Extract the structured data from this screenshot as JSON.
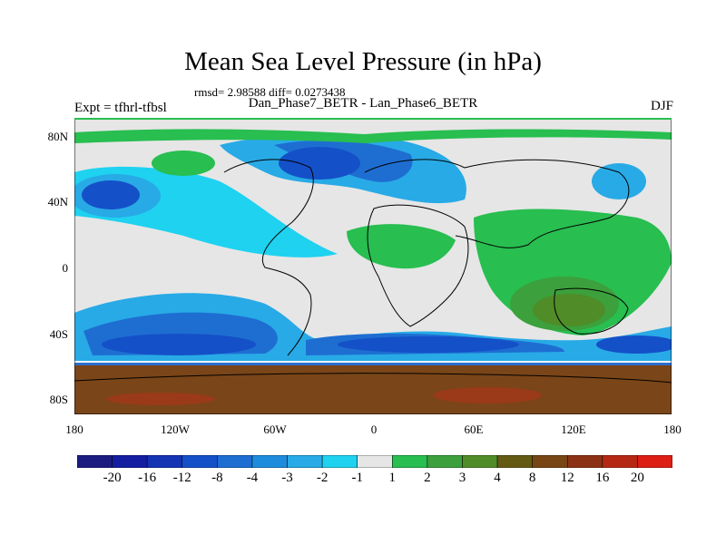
{
  "title": "Mean Sea Level Pressure (in hPa)",
  "stats_line": "rmsd= 2.98588 diff= 0.0273438",
  "experiment_label": "Expt = tfhrl-tfbsl",
  "subtitle": "Dan_Phase7_BETR - Lan_Phase6_BETR",
  "season": "DJF",
  "latitude_ticks": [
    "80N",
    "40N",
    "0",
    "40S",
    "80S"
  ],
  "longitude_ticks": [
    "180",
    "120W",
    "60W",
    "0",
    "60E",
    "120E",
    "180"
  ],
  "colorbar": {
    "labels": [
      "-20",
      "-16",
      "-12",
      "-8",
      "-4",
      "-3",
      "-2",
      "-1",
      "1",
      "2",
      "3",
      "4",
      "8",
      "12",
      "16",
      "20"
    ],
    "colors": [
      "#1c1c80",
      "#141ea0",
      "#1434b4",
      "#1450c8",
      "#1e6ed2",
      "#1e8cdc",
      "#28aae6",
      "#1ed2f0",
      "#e6e6e6",
      "#28be50",
      "#3ca03c",
      "#508c28",
      "#645a14",
      "#784614",
      "#8c3214",
      "#b42814",
      "#dc1e14"
    ]
  },
  "colors": {
    "neutral": "#e6e6e6",
    "land_outline": "#000000",
    "south_band": "#7a4518",
    "south_band_dark": "#9a3a18"
  }
}
